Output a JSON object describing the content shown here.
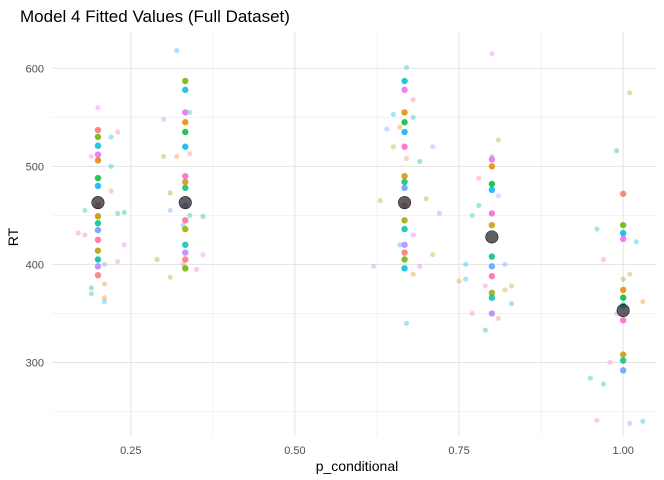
{
  "chart_data": {
    "type": "scatter",
    "title": "Model 4 Fitted Values (Full Dataset)",
    "xlabel": "p_conditional",
    "ylabel": "RT",
    "xlim": [
      0.13,
      1.05
    ],
    "ylim": [
      225,
      637
    ],
    "x_ticks": [
      0.25,
      0.5,
      0.75,
      1.0
    ],
    "x_tick_labels": [
      "0.25",
      "0.50",
      "0.75",
      "1.00"
    ],
    "y_ticks": [
      300,
      400,
      500,
      600
    ],
    "y_tick_labels": [
      "300",
      "400",
      "500",
      "600"
    ],
    "grid": true,
    "legend": "none",
    "colors": [
      "#F8766D",
      "#E58700",
      "#C99800",
      "#A3A500",
      "#6BB100",
      "#00BA38",
      "#00BF7D",
      "#00C0AF",
      "#00BCD8",
      "#00B0F6",
      "#619CFF",
      "#B983FF",
      "#E76BF3",
      "#FD61D1",
      "#FF67A4"
    ],
    "mean_color": "#333333",
    "observed_points": [
      {
        "x": 0.17,
        "y": 432
      },
      {
        "x": 0.18,
        "y": 455
      },
      {
        "x": 0.18,
        "y": 430
      },
      {
        "x": 0.19,
        "y": 370
      },
      {
        "x": 0.19,
        "y": 510
      },
      {
        "x": 0.19,
        "y": 376
      },
      {
        "x": 0.2,
        "y": 560
      },
      {
        "x": 0.2,
        "y": 405
      },
      {
        "x": 0.2,
        "y": 508
      },
      {
        "x": 0.2,
        "y": 450
      },
      {
        "x": 0.21,
        "y": 400
      },
      {
        "x": 0.21,
        "y": 380
      },
      {
        "x": 0.21,
        "y": 362
      },
      {
        "x": 0.21,
        "y": 366
      },
      {
        "x": 0.22,
        "y": 530
      },
      {
        "x": 0.22,
        "y": 475
      },
      {
        "x": 0.22,
        "y": 500
      },
      {
        "x": 0.23,
        "y": 535
      },
      {
        "x": 0.23,
        "y": 452
      },
      {
        "x": 0.23,
        "y": 403
      },
      {
        "x": 0.24,
        "y": 453
      },
      {
        "x": 0.24,
        "y": 420
      },
      {
        "x": 0.29,
        "y": 405
      },
      {
        "x": 0.3,
        "y": 548
      },
      {
        "x": 0.3,
        "y": 510
      },
      {
        "x": 0.31,
        "y": 455
      },
      {
        "x": 0.31,
        "y": 387
      },
      {
        "x": 0.32,
        "y": 618
      },
      {
        "x": 0.32,
        "y": 510
      },
      {
        "x": 0.33,
        "y": 440
      },
      {
        "x": 0.33,
        "y": 400
      },
      {
        "x": 0.34,
        "y": 555
      },
      {
        "x": 0.34,
        "y": 513
      },
      {
        "x": 0.34,
        "y": 450
      },
      {
        "x": 0.35,
        "y": 395
      },
      {
        "x": 0.36,
        "y": 449
      },
      {
        "x": 0.36,
        "y": 410
      },
      {
        "x": 0.31,
        "y": 473
      },
      {
        "x": 0.62,
        "y": 398
      },
      {
        "x": 0.63,
        "y": 465
      },
      {
        "x": 0.64,
        "y": 538
      },
      {
        "x": 0.65,
        "y": 520
      },
      {
        "x": 0.65,
        "y": 553
      },
      {
        "x": 0.66,
        "y": 540
      },
      {
        "x": 0.67,
        "y": 340
      },
      {
        "x": 0.67,
        "y": 508
      },
      {
        "x": 0.67,
        "y": 601
      },
      {
        "x": 0.68,
        "y": 568
      },
      {
        "x": 0.68,
        "y": 550
      },
      {
        "x": 0.68,
        "y": 430
      },
      {
        "x": 0.69,
        "y": 505
      },
      {
        "x": 0.69,
        "y": 398
      },
      {
        "x": 0.7,
        "y": 467
      },
      {
        "x": 0.71,
        "y": 520
      },
      {
        "x": 0.71,
        "y": 410
      },
      {
        "x": 0.72,
        "y": 452
      },
      {
        "x": 0.68,
        "y": 390
      },
      {
        "x": 0.66,
        "y": 420
      },
      {
        "x": 0.75,
        "y": 383
      },
      {
        "x": 0.76,
        "y": 400
      },
      {
        "x": 0.77,
        "y": 350
      },
      {
        "x": 0.77,
        "y": 450
      },
      {
        "x": 0.78,
        "y": 488
      },
      {
        "x": 0.78,
        "y": 460
      },
      {
        "x": 0.79,
        "y": 378
      },
      {
        "x": 0.79,
        "y": 333
      },
      {
        "x": 0.8,
        "y": 615
      },
      {
        "x": 0.8,
        "y": 510
      },
      {
        "x": 0.81,
        "y": 470
      },
      {
        "x": 0.81,
        "y": 527
      },
      {
        "x": 0.82,
        "y": 400
      },
      {
        "x": 0.82,
        "y": 374
      },
      {
        "x": 0.83,
        "y": 360
      },
      {
        "x": 0.83,
        "y": 378
      },
      {
        "x": 0.76,
        "y": 385
      },
      {
        "x": 0.81,
        "y": 345
      },
      {
        "x": 0.95,
        "y": 284
      },
      {
        "x": 0.96,
        "y": 241
      },
      {
        "x": 0.97,
        "y": 278
      },
      {
        "x": 0.98,
        "y": 300
      },
      {
        "x": 0.99,
        "y": 516
      },
      {
        "x": 0.99,
        "y": 350
      },
      {
        "x": 1.0,
        "y": 385
      },
      {
        "x": 1.0,
        "y": 430
      },
      {
        "x": 1.01,
        "y": 575
      },
      {
        "x": 1.01,
        "y": 238
      },
      {
        "x": 1.01,
        "y": 390
      },
      {
        "x": 1.02,
        "y": 423
      },
      {
        "x": 1.03,
        "y": 362
      },
      {
        "x": 1.03,
        "y": 240
      },
      {
        "x": 0.97,
        "y": 405
      },
      {
        "x": 0.96,
        "y": 436
      }
    ],
    "fitted_points": [
      {
        "x": 0.2,
        "y": 537
      },
      {
        "x": 0.2,
        "y": 530
      },
      {
        "x": 0.2,
        "y": 521
      },
      {
        "x": 0.2,
        "y": 512
      },
      {
        "x": 0.2,
        "y": 506
      },
      {
        "x": 0.2,
        "y": 488
      },
      {
        "x": 0.2,
        "y": 480
      },
      {
        "x": 0.2,
        "y": 460
      },
      {
        "x": 0.2,
        "y": 449
      },
      {
        "x": 0.2,
        "y": 442
      },
      {
        "x": 0.2,
        "y": 435
      },
      {
        "x": 0.2,
        "y": 425
      },
      {
        "x": 0.2,
        "y": 414
      },
      {
        "x": 0.2,
        "y": 405
      },
      {
        "x": 0.2,
        "y": 398
      },
      {
        "x": 0.2,
        "y": 389
      },
      {
        "x": 0.333,
        "y": 587
      },
      {
        "x": 0.333,
        "y": 578
      },
      {
        "x": 0.333,
        "y": 555
      },
      {
        "x": 0.333,
        "y": 545
      },
      {
        "x": 0.333,
        "y": 535
      },
      {
        "x": 0.333,
        "y": 520
      },
      {
        "x": 0.333,
        "y": 490
      },
      {
        "x": 0.333,
        "y": 484
      },
      {
        "x": 0.333,
        "y": 478
      },
      {
        "x": 0.333,
        "y": 460
      },
      {
        "x": 0.333,
        "y": 445
      },
      {
        "x": 0.333,
        "y": 436
      },
      {
        "x": 0.333,
        "y": 420
      },
      {
        "x": 0.333,
        "y": 412
      },
      {
        "x": 0.333,
        "y": 405
      },
      {
        "x": 0.333,
        "y": 396
      },
      {
        "x": 0.667,
        "y": 587
      },
      {
        "x": 0.667,
        "y": 578
      },
      {
        "x": 0.667,
        "y": 555
      },
      {
        "x": 0.667,
        "y": 545
      },
      {
        "x": 0.667,
        "y": 535
      },
      {
        "x": 0.667,
        "y": 520
      },
      {
        "x": 0.667,
        "y": 490
      },
      {
        "x": 0.667,
        "y": 484
      },
      {
        "x": 0.667,
        "y": 478
      },
      {
        "x": 0.667,
        "y": 460
      },
      {
        "x": 0.667,
        "y": 445
      },
      {
        "x": 0.667,
        "y": 436
      },
      {
        "x": 0.667,
        "y": 420
      },
      {
        "x": 0.667,
        "y": 412
      },
      {
        "x": 0.667,
        "y": 405
      },
      {
        "x": 0.667,
        "y": 396
      },
      {
        "x": 0.8,
        "y": 507
      },
      {
        "x": 0.8,
        "y": 500
      },
      {
        "x": 0.8,
        "y": 482
      },
      {
        "x": 0.8,
        "y": 476
      },
      {
        "x": 0.8,
        "y": 452
      },
      {
        "x": 0.8,
        "y": 440
      },
      {
        "x": 0.8,
        "y": 408
      },
      {
        "x": 0.8,
        "y": 398
      },
      {
        "x": 0.8,
        "y": 388
      },
      {
        "x": 0.8,
        "y": 371
      },
      {
        "x": 0.8,
        "y": 366
      },
      {
        "x": 0.8,
        "y": 350
      },
      {
        "x": 1.0,
        "y": 472
      },
      {
        "x": 1.0,
        "y": 440
      },
      {
        "x": 1.0,
        "y": 432
      },
      {
        "x": 1.0,
        "y": 426
      },
      {
        "x": 1.0,
        "y": 374
      },
      {
        "x": 1.0,
        "y": 366
      },
      {
        "x": 1.0,
        "y": 358
      },
      {
        "x": 1.0,
        "y": 343
      },
      {
        "x": 1.0,
        "y": 308
      },
      {
        "x": 1.0,
        "y": 302
      },
      {
        "x": 1.0,
        "y": 292
      }
    ],
    "mean_points": [
      {
        "x": 0.2,
        "y": 463
      },
      {
        "x": 0.333,
        "y": 463
      },
      {
        "x": 0.667,
        "y": 463
      },
      {
        "x": 0.8,
        "y": 428
      },
      {
        "x": 1.0,
        "y": 353
      }
    ]
  }
}
